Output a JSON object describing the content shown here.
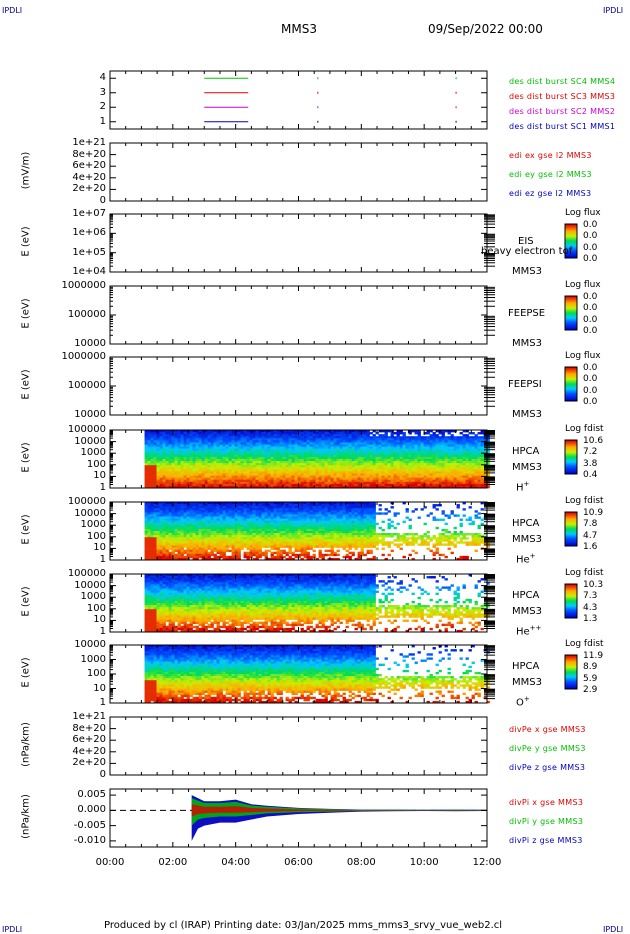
{
  "header": {
    "left_tag": "IPDLI",
    "right_tag": "IPDLI",
    "title": "MMS3",
    "date": "09/Sep/2022 00:00",
    "bottom_left_tag": "IPDLI",
    "bottom_right_tag": "IPDLI"
  },
  "footer": "Produced by cl (IRAP)   Printing date: 03/Jan/2025   mms_mms3_srvy_vue_web2.cl",
  "colors": {
    "red": "#e00000",
    "green": "#00c000",
    "blue": "#0000c0",
    "magenta": "#d000d0"
  },
  "chart_data": [
    {
      "type": "line",
      "panel": "burst-intervals",
      "yticks": [
        "4",
        "3",
        "2",
        "1"
      ],
      "ylim": [
        0.5,
        4.5
      ],
      "legend": [
        {
          "text": "des dist burst SC1 MMS1",
          "color": "#0000c0"
        },
        {
          "text": "des dist burst SC2 MMS2",
          "color": "#d000d0"
        },
        {
          "text": "des dist burst SC3 MMS3",
          "color": "#e00000"
        },
        {
          "text": "des dist burst SC4 MMS4",
          "color": "#00c000"
        }
      ],
      "series": [
        {
          "level": 4,
          "color": "#00c000",
          "intervals": [
            [
              3.0,
              4.4
            ]
          ]
        },
        {
          "level": 3,
          "color": "#e00000",
          "intervals": [
            [
              3.0,
              4.4
            ]
          ]
        },
        {
          "level": 2,
          "color": "#d000d0",
          "intervals": [
            [
              3.0,
              4.4
            ]
          ]
        },
        {
          "level": 1,
          "color": "#0000c0",
          "intervals": [
            [
              3.0,
              4.4
            ]
          ]
        }
      ]
    },
    {
      "type": "line",
      "panel": "edi-e-field",
      "ylabel": "(mV/m)",
      "yticks": [
        "1e+21",
        "8e+20",
        "6e+20",
        "4e+20",
        "2e+20",
        "0"
      ],
      "ylim": [
        0,
        1e+21
      ],
      "legend": [
        {
          "text": "edi ex gse l2 MMS3",
          "color": "#e00000"
        },
        {
          "text": "edi ey gse l2 MMS3",
          "color": "#00c000"
        },
        {
          "text": "edi ez gse l2 MMS3",
          "color": "#0000c0"
        }
      ]
    },
    {
      "type": "heatmap",
      "panel": "eis",
      "ylabel": "E (eV)",
      "yticks": [
        "1e+07",
        "1e+06",
        "1e+05",
        "1e+04"
      ],
      "ylim": [
        10000.0,
        10000000.0
      ],
      "instrument": "EIS",
      "instrument_sub": "heavy electron tof",
      "spacecraft": "MMS3",
      "cb_title": "Log flux",
      "cb_values": [
        "0.0",
        "0.0",
        "0.0",
        "0.0"
      ]
    },
    {
      "type": "heatmap",
      "panel": "feeps-e",
      "ylabel": "E (eV)",
      "yticks": [
        "1000000",
        "100000",
        "10000"
      ],
      "ylim": [
        10000.0,
        1000000.0
      ],
      "instrument": "FEEPSE",
      "spacecraft": "MMS3",
      "cb_title": "Log flux",
      "cb_values": [
        "0.0",
        "0.0",
        "0.0",
        "0.0"
      ]
    },
    {
      "type": "heatmap",
      "panel": "feeps-i",
      "ylabel": "E (eV)",
      "yticks": [
        "1000000",
        "100000",
        "10000"
      ],
      "ylim": [
        10000.0,
        1000000.0
      ],
      "instrument": "FEEPSI",
      "spacecraft": "MMS3",
      "cb_title": "Log flux",
      "cb_values": [
        "0.0",
        "0.0",
        "0.0",
        "0.0"
      ]
    },
    {
      "type": "heatmap",
      "panel": "hpca-h",
      "ylabel": "E (eV)",
      "yticks": [
        "100000",
        "10000",
        "1000",
        "100",
        "10",
        "1"
      ],
      "ylim": [
        1,
        100000.0
      ],
      "instrument": "HPCA",
      "spacecraft": "MMS3",
      "species": "H",
      "species_sup": "+",
      "cb_title": "Log fdist",
      "cb_values": [
        "10.6",
        "7.2",
        "3.8",
        "0.4"
      ],
      "data_start_hr": 1.1,
      "dense_end_hr": 12.0
    },
    {
      "type": "heatmap",
      "panel": "hpca-he",
      "ylabel": "E (eV)",
      "yticks": [
        "100000",
        "10000",
        "1000",
        "100",
        "10",
        "1"
      ],
      "ylim": [
        1,
        100000.0
      ],
      "instrument": "HPCA",
      "spacecraft": "MMS3",
      "species": "He",
      "species_sup": "+",
      "cb_title": "Log fdist",
      "cb_values": [
        "10.9",
        "7.8",
        "4.7",
        "1.6"
      ],
      "data_start_hr": 1.1,
      "dense_end_hr": 8.4
    },
    {
      "type": "heatmap",
      "panel": "hpca-hepp",
      "ylabel": "E (eV)",
      "yticks": [
        "100000",
        "10000",
        "1000",
        "100",
        "10",
        "1"
      ],
      "ylim": [
        1,
        100000.0
      ],
      "instrument": "HPCA",
      "spacecraft": "MMS3",
      "species": "He",
      "species_sup": "++",
      "cb_title": "Log fdist",
      "cb_values": [
        "10.3",
        "7.3",
        "4.3",
        "1.3"
      ],
      "data_start_hr": 1.1,
      "dense_end_hr": 8.4
    },
    {
      "type": "heatmap",
      "panel": "hpca-o",
      "ylabel": "E (eV)",
      "yticks": [
        "10000",
        "1000",
        "100",
        "10",
        "1"
      ],
      "ylim": [
        1,
        10000.0
      ],
      "instrument": "HPCA",
      "spacecraft": "MMS3",
      "species": "O",
      "species_sup": "+",
      "cb_title": "Log fdist",
      "cb_values": [
        "11.9",
        "8.9",
        "5.9",
        "2.9"
      ],
      "data_start_hr": 1.1,
      "dense_end_hr": 8.4
    },
    {
      "type": "line",
      "panel": "div-pe",
      "ylabel": "(nPa/km)",
      "yticks": [
        "1e+21",
        "8e+20",
        "6e+20",
        "4e+20",
        "2e+20",
        "0"
      ],
      "ylim": [
        0,
        1e+21
      ],
      "legend": [
        {
          "text": "divPe x gse MMS3",
          "color": "#e00000"
        },
        {
          "text": "divPe y gse MMS3",
          "color": "#00c000"
        },
        {
          "text": "divPe z gse MMS3",
          "color": "#0000c0"
        }
      ]
    },
    {
      "type": "line",
      "panel": "div-pi",
      "ylabel": "(nPa/km)",
      "yticks": [
        "0.005",
        "0.000",
        "-0.005",
        "-0.010"
      ],
      "ylim": [
        -0.012,
        0.007
      ],
      "legend": [
        {
          "text": "divPi x gse MMS3",
          "color": "#e00000"
        },
        {
          "text": "divPi y gse MMS3",
          "color": "#00c000"
        },
        {
          "text": "divPi z gse MMS3",
          "color": "#0000c0"
        }
      ],
      "x": [
        2.6,
        2.8,
        3.0,
        3.5,
        4.0,
        4.5,
        5.0,
        6.0,
        7.0,
        8.0,
        9.0,
        10.0,
        11.0,
        12.0
      ],
      "envelope_max": [
        0.005,
        0.004,
        0.003,
        0.003,
        0.0035,
        0.002,
        0.0015,
        0.0008,
        0.0005,
        0.0003,
        0.0003,
        0.0002,
        0.0003,
        0.0002
      ],
      "envelope_min": [
        -0.01,
        -0.006,
        -0.005,
        -0.004,
        -0.004,
        -0.003,
        -0.002,
        -0.0012,
        -0.0008,
        -0.0004,
        -0.0003,
        -0.0002,
        -0.0003,
        -0.0002
      ]
    }
  ],
  "x_axis": {
    "ticks": [
      "00:00",
      "02:00",
      "04:00",
      "06:00",
      "08:00",
      "10:00",
      "12:00"
    ],
    "range_hr": [
      0,
      12
    ]
  }
}
